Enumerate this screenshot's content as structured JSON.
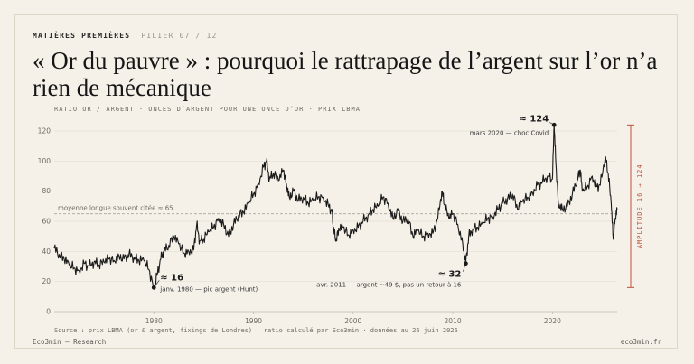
{
  "header": {
    "kicker": "MATIÈRES PREMIÈRES",
    "kicker_tag": "PILIER 07 / 12",
    "title": "« Or du pauvre » : pourquoi le rattrapage de l’argent sur l’or n’a rien de mécanique",
    "subtitle": "RATIO OR / ARGENT · ONCES D’ARGENT POUR UNE ONCE D’OR · PRIX LBMA"
  },
  "footer": {
    "source": "Source : prix LBMA (or & argent, fixings de Londres) — ratio calculé par Eco3min · données au 26 juin 2026",
    "left": "Eco3min — Research",
    "right": "eco3min.fr"
  },
  "colors": {
    "background": "#f5f1e8",
    "line": "#1a1a1a",
    "accent": "#c0503a",
    "reference": "#a8a39a"
  },
  "chart_data": {
    "type": "line",
    "title": "RATIO OR / ARGENT · ONCES D’ARGENT POUR UNE ONCE D’OR · PRIX LBMA",
    "xlabel": "",
    "ylabel": "",
    "xlim": [
      1970,
      2026.5
    ],
    "ylim": [
      0,
      120
    ],
    "x_ticks": [
      "1980",
      "1990",
      "2000",
      "2010",
      "2020"
    ],
    "y_ticks": [
      "0",
      "20",
      "40",
      "60",
      "80",
      "100",
      "120"
    ],
    "grid": "horizontal",
    "reference_line": {
      "y": 65,
      "label": "moyenne longue souvent citée ≈ 65"
    },
    "range_bracket": {
      "from": 16,
      "to": 124,
      "label": "AMPLITUDE 16 → 124"
    },
    "series": [
      {
        "points": [
          [
            1970.0,
            42
          ],
          [
            1970.5,
            38
          ],
          [
            1971.0,
            35
          ],
          [
            1971.5,
            31
          ],
          [
            1972.0,
            29
          ],
          [
            1972.5,
            27
          ],
          [
            1973.0,
            32
          ],
          [
            1973.5,
            30
          ],
          [
            1974.0,
            33
          ],
          [
            1974.5,
            31
          ],
          [
            1975.0,
            33
          ],
          [
            1975.5,
            35
          ],
          [
            1976.0,
            34
          ],
          [
            1976.5,
            37
          ],
          [
            1977.0,
            35
          ],
          [
            1977.5,
            38
          ],
          [
            1978.0,
            36
          ],
          [
            1978.5,
            34
          ],
          [
            1979.0,
            34
          ],
          [
            1979.5,
            28
          ],
          [
            1980.0,
            16
          ],
          [
            1980.3,
            24
          ],
          [
            1980.7,
            35
          ],
          [
            1981.0,
            40
          ],
          [
            1981.5,
            44
          ],
          [
            1982.0,
            50
          ],
          [
            1982.5,
            45
          ],
          [
            1983.0,
            39
          ],
          [
            1983.5,
            40
          ],
          [
            1984.0,
            41
          ],
          [
            1984.3,
            58
          ],
          [
            1984.6,
            47
          ],
          [
            1985.0,
            48
          ],
          [
            1985.5,
            53
          ],
          [
            1986.0,
            56
          ],
          [
            1986.5,
            62
          ],
          [
            1987.0,
            58
          ],
          [
            1987.5,
            50
          ],
          [
            1988.0,
            58
          ],
          [
            1988.5,
            64
          ],
          [
            1989.0,
            66
          ],
          [
            1989.5,
            72
          ],
          [
            1990.0,
            78
          ],
          [
            1990.5,
            85
          ],
          [
            1991.0,
            96
          ],
          [
            1991.3,
            100
          ],
          [
            1991.6,
            88
          ],
          [
            1992.0,
            92
          ],
          [
            1992.5,
            87
          ],
          [
            1993.0,
            94
          ],
          [
            1993.3,
            85
          ],
          [
            1993.6,
            76
          ],
          [
            1994.0,
            80
          ],
          [
            1994.5,
            74
          ],
          [
            1995.0,
            76
          ],
          [
            1995.5,
            72
          ],
          [
            1996.0,
            74
          ],
          [
            1996.5,
            76
          ],
          [
            1997.0,
            76
          ],
          [
            1997.5,
            71
          ],
          [
            1997.9,
            66
          ],
          [
            1998.0,
            55
          ],
          [
            1998.3,
            48
          ],
          [
            1998.6,
            55
          ],
          [
            1999.0,
            56
          ],
          [
            1999.5,
            51
          ],
          [
            2000.0,
            54
          ],
          [
            2000.5,
            56
          ],
          [
            2001.0,
            60
          ],
          [
            2001.5,
            64
          ],
          [
            2002.0,
            68
          ],
          [
            2002.5,
            70
          ],
          [
            2003.0,
            76
          ],
          [
            2003.5,
            72
          ],
          [
            2004.0,
            62
          ],
          [
            2004.5,
            67
          ],
          [
            2005.0,
            60
          ],
          [
            2005.5,
            62
          ],
          [
            2006.0,
            50
          ],
          [
            2006.5,
            54
          ],
          [
            2007.0,
            50
          ],
          [
            2007.5,
            52
          ],
          [
            2008.0,
            52
          ],
          [
            2008.5,
            62
          ],
          [
            2008.9,
            80
          ],
          [
            2009.2,
            71
          ],
          [
            2009.6,
            62
          ],
          [
            2010.0,
            65
          ],
          [
            2010.5,
            58
          ],
          [
            2011.0,
            45
          ],
          [
            2011.3,
            32
          ],
          [
            2011.6,
            50
          ],
          [
            2012.0,
            55
          ],
          [
            2012.5,
            56
          ],
          [
            2013.0,
            58
          ],
          [
            2013.5,
            62
          ],
          [
            2014.0,
            63
          ],
          [
            2014.5,
            68
          ],
          [
            2015.0,
            72
          ],
          [
            2015.5,
            75
          ],
          [
            2016.0,
            78
          ],
          [
            2016.5,
            68
          ],
          [
            2017.0,
            73
          ],
          [
            2017.5,
            76
          ],
          [
            2018.0,
            79
          ],
          [
            2018.5,
            84
          ],
          [
            2019.0,
            86
          ],
          [
            2019.5,
            90
          ],
          [
            2020.0,
            88
          ],
          [
            2020.17,
            124
          ],
          [
            2020.35,
            98
          ],
          [
            2020.6,
            72
          ],
          [
            2021.0,
            68
          ],
          [
            2021.5,
            70
          ],
          [
            2022.0,
            78
          ],
          [
            2022.5,
            88
          ],
          [
            2022.8,
            94
          ],
          [
            2023.0,
            80
          ],
          [
            2023.5,
            83
          ],
          [
            2024.0,
            90
          ],
          [
            2024.4,
            83
          ],
          [
            2024.8,
            84
          ],
          [
            2025.3,
            103
          ],
          [
            2025.6,
            92
          ],
          [
            2025.9,
            72
          ],
          [
            2026.1,
            48
          ],
          [
            2026.3,
            62
          ],
          [
            2026.5,
            68
          ]
        ]
      }
    ],
    "annotations": [
      {
        "x": 1980.0,
        "y": 16,
        "value_label": "≈ 16",
        "label": "janv. 1980 — pic argent (Hunt)"
      },
      {
        "x": 2011.3,
        "y": 32,
        "value_label": "≈ 32",
        "label": "avr. 2011 — argent ~49 $, pas un retour à 16"
      },
      {
        "x": 2020.17,
        "y": 124,
        "value_label": "≈ 124",
        "label": "mars 2020 — choc Covid"
      }
    ]
  }
}
